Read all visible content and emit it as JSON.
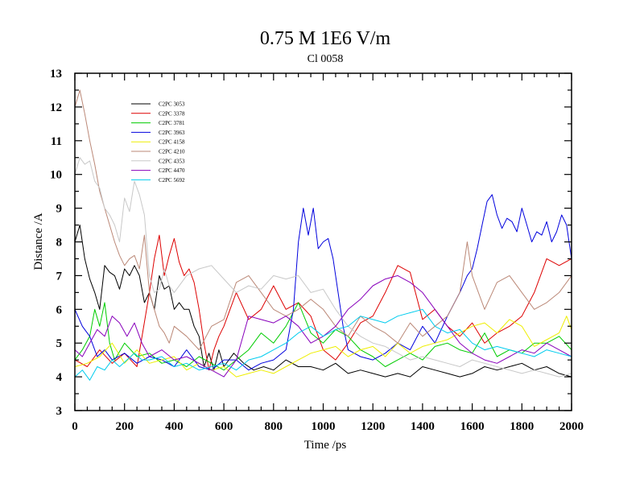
{
  "chart_data": {
    "type": "line",
    "title": "0.75 M 1E6 V/m",
    "subtitle": "Cl 0058",
    "xlabel": "Time /ps",
    "ylabel": "Distance /A",
    "xlim": [
      0,
      2000
    ],
    "ylim": [
      3,
      13
    ],
    "x_major_ticks": [
      0,
      200,
      400,
      600,
      800,
      1000,
      1200,
      1400,
      1600,
      1800,
      2000
    ],
    "x_tick_labels": [
      "0",
      "200",
      "400",
      "600",
      "800",
      "1000",
      "1200",
      "1400",
      "1600",
      "1800",
      "2000"
    ],
    "y_major_ticks": [
      3,
      4,
      5,
      6,
      7,
      8,
      9,
      10,
      11,
      12,
      13
    ],
    "y_tick_labels": [
      "3",
      "4",
      "5",
      "6",
      "7",
      "8",
      "9",
      "10",
      "11",
      "12",
      "13"
    ],
    "legend_position": "top-left",
    "grid": false,
    "series": [
      {
        "name": "C2PC 3053",
        "color": "#000000",
        "x": [
          0,
          20,
          40,
          60,
          80,
          100,
          120,
          140,
          160,
          180,
          200,
          220,
          240,
          260,
          280,
          300,
          320,
          340,
          360,
          380,
          400,
          420,
          440,
          460,
          480,
          500,
          520,
          540,
          560,
          580,
          600,
          640,
          680,
          720,
          760,
          800,
          850,
          900,
          950,
          1000,
          1050,
          1100,
          1150,
          1200,
          1250,
          1300,
          1350,
          1400,
          1450,
          1500,
          1550,
          1600,
          1650,
          1700,
          1750,
          1800,
          1850,
          1900,
          1950,
          2000
        ],
        "values": [
          8.0,
          8.5,
          7.5,
          6.9,
          6.5,
          6.0,
          7.3,
          7.1,
          7.0,
          6.6,
          7.2,
          7.0,
          7.3,
          7.0,
          6.2,
          6.5,
          6.0,
          7.0,
          6.6,
          6.7,
          6.0,
          6.2,
          6.0,
          6.0,
          5.5,
          5.2,
          4.3,
          4.7,
          4.2,
          4.8,
          4.3,
          4.7,
          4.4,
          4.2,
          4.3,
          4.2,
          4.5,
          4.3,
          4.3,
          4.2,
          4.4,
          4.1,
          4.2,
          4.1,
          4.0,
          4.1,
          4.0,
          4.3,
          4.2,
          4.1,
          4.0,
          4.1,
          4.3,
          4.2,
          4.3,
          4.4,
          4.2,
          4.3,
          4.1,
          4.0
        ]
      },
      {
        "name": "C2PC 3378",
        "color": "#dd0000",
        "x": [
          0,
          50,
          100,
          150,
          200,
          250,
          300,
          320,
          340,
          360,
          380,
          400,
          420,
          440,
          460,
          480,
          500,
          520,
          540,
          560,
          580,
          600,
          650,
          700,
          750,
          800,
          850,
          900,
          950,
          1000,
          1050,
          1100,
          1150,
          1200,
          1250,
          1300,
          1350,
          1400,
          1450,
          1500,
          1550,
          1600,
          1650,
          1700,
          1750,
          1800,
          1850,
          1900,
          1950,
          2000
        ],
        "values": [
          4.5,
          4.3,
          4.8,
          4.4,
          4.7,
          4.3,
          6.5,
          7.5,
          8.2,
          7.0,
          7.6,
          8.1,
          7.4,
          7.0,
          7.2,
          6.8,
          6.0,
          5.0,
          4.2,
          4.8,
          5.2,
          5.5,
          6.5,
          5.7,
          6.0,
          6.7,
          6.0,
          6.2,
          5.8,
          4.8,
          4.5,
          5.0,
          5.6,
          5.8,
          6.5,
          7.3,
          7.1,
          5.7,
          6.0,
          5.5,
          5.2,
          5.6,
          5.0,
          5.3,
          5.5,
          5.8,
          6.5,
          7.5,
          7.3,
          7.5
        ]
      },
      {
        "name": "C2PC 3781",
        "color": "#00cc00",
        "x": [
          0,
          30,
          60,
          80,
          100,
          120,
          140,
          160,
          200,
          250,
          300,
          350,
          400,
          450,
          500,
          550,
          600,
          650,
          700,
          750,
          800,
          850,
          900,
          950,
          1000,
          1050,
          1100,
          1150,
          1200,
          1250,
          1300,
          1350,
          1400,
          1450,
          1500,
          1550,
          1600,
          1650,
          1700,
          1750,
          1800,
          1850,
          1900,
          1950,
          2000
        ],
        "values": [
          4.5,
          4.8,
          5.2,
          6.0,
          5.5,
          6.2,
          5.0,
          4.5,
          5.0,
          4.6,
          4.7,
          4.4,
          4.5,
          4.3,
          4.6,
          4.4,
          4.2,
          4.5,
          4.8,
          5.3,
          5.0,
          5.5,
          6.2,
          5.3,
          5.0,
          5.4,
          5.2,
          4.8,
          4.6,
          4.3,
          4.5,
          4.7,
          4.5,
          4.9,
          5.0,
          4.8,
          4.7,
          5.3,
          4.6,
          4.8,
          4.7,
          5.0,
          5.0,
          5.2,
          4.8
        ]
      },
      {
        "name": "C2PC 3963",
        "color": "#0000dd",
        "x": [
          0,
          30,
          60,
          90,
          120,
          150,
          200,
          250,
          300,
          350,
          400,
          450,
          500,
          550,
          600,
          650,
          700,
          750,
          800,
          850,
          880,
          900,
          920,
          940,
          960,
          980,
          1000,
          1020,
          1040,
          1060,
          1080,
          1100,
          1150,
          1200,
          1250,
          1300,
          1350,
          1400,
          1450,
          1500,
          1550,
          1580,
          1600,
          1620,
          1640,
          1660,
          1680,
          1700,
          1720,
          1740,
          1760,
          1780,
          1800,
          1820,
          1840,
          1860,
          1880,
          1900,
          1920,
          1940,
          1960,
          1980,
          2000
        ],
        "values": [
          6.0,
          5.5,
          5.2,
          4.6,
          4.8,
          4.5,
          4.7,
          4.4,
          4.6,
          4.5,
          4.3,
          4.8,
          4.3,
          4.2,
          4.5,
          4.5,
          4.2,
          4.4,
          4.5,
          4.8,
          6.0,
          8.0,
          9.0,
          8.2,
          9.0,
          7.8,
          8.0,
          8.1,
          7.5,
          6.5,
          5.5,
          4.8,
          4.6,
          4.5,
          4.7,
          5.0,
          4.8,
          5.5,
          5.0,
          5.8,
          6.5,
          7.0,
          7.2,
          7.8,
          8.5,
          9.2,
          9.4,
          8.8,
          8.4,
          8.7,
          8.6,
          8.3,
          9.0,
          8.5,
          8.0,
          8.3,
          8.2,
          8.6,
          8.0,
          8.3,
          8.8,
          8.5,
          7.5
        ]
      },
      {
        "name": "C2PC 4158",
        "color": "#eeee00",
        "x": [
          0,
          50,
          100,
          150,
          200,
          250,
          300,
          350,
          400,
          450,
          500,
          550,
          600,
          650,
          700,
          750,
          800,
          850,
          900,
          950,
          1000,
          1050,
          1100,
          1150,
          1200,
          1250,
          1300,
          1350,
          1400,
          1450,
          1500,
          1550,
          1600,
          1650,
          1700,
          1750,
          1800,
          1850,
          1900,
          1950,
          1980,
          2000
        ],
        "values": [
          4.3,
          4.4,
          4.6,
          5.0,
          4.4,
          4.8,
          4.4,
          4.5,
          4.6,
          4.2,
          4.4,
          4.2,
          4.3,
          4.0,
          4.1,
          4.2,
          4.1,
          4.3,
          4.5,
          4.7,
          4.8,
          4.9,
          4.6,
          4.8,
          4.9,
          4.6,
          5.0,
          4.7,
          4.9,
          5.0,
          5.1,
          5.3,
          5.5,
          5.6,
          5.3,
          5.7,
          5.5,
          4.9,
          5.1,
          5.3,
          5.8,
          5.4
        ]
      },
      {
        "name": "C2PC 4210",
        "color": "#bb8877",
        "x": [
          0,
          20,
          40,
          60,
          80,
          100,
          120,
          140,
          160,
          180,
          200,
          220,
          240,
          260,
          280,
          300,
          320,
          340,
          360,
          380,
          400,
          450,
          500,
          550,
          600,
          650,
          700,
          750,
          800,
          850,
          900,
          950,
          1000,
          1050,
          1100,
          1150,
          1200,
          1250,
          1300,
          1350,
          1400,
          1450,
          1500,
          1550,
          1580,
          1600,
          1650,
          1700,
          1750,
          1800,
          1850,
          1900,
          1950,
          2000
        ],
        "values": [
          12.0,
          12.5,
          11.8,
          11.0,
          10.3,
          9.5,
          9.0,
          8.5,
          8.0,
          7.6,
          7.3,
          7.5,
          7.6,
          7.2,
          8.2,
          6.5,
          6.0,
          5.5,
          5.3,
          5.0,
          5.5,
          5.2,
          4.8,
          5.5,
          5.7,
          6.8,
          7.0,
          6.5,
          6.0,
          5.8,
          6.0,
          6.3,
          6.0,
          5.5,
          5.2,
          5.8,
          5.5,
          5.3,
          5.0,
          5.6,
          5.2,
          5.5,
          5.8,
          6.5,
          8.0,
          7.0,
          6.0,
          6.8,
          7.0,
          6.5,
          6.0,
          6.2,
          6.5,
          7.0
        ]
      },
      {
        "name": "C2PC 4353",
        "color": "#c8c8c8",
        "x": [
          0,
          20,
          40,
          60,
          80,
          100,
          120,
          140,
          160,
          180,
          200,
          220,
          240,
          260,
          280,
          300,
          320,
          340,
          360,
          380,
          400,
          450,
          500,
          550,
          600,
          650,
          700,
          750,
          800,
          850,
          900,
          950,
          1000,
          1050,
          1100,
          1150,
          1200,
          1250,
          1300,
          1350,
          1400,
          1450,
          1500,
          1550,
          1600,
          1650,
          1700,
          1750,
          1800,
          1850,
          1900,
          1950,
          2000
        ],
        "values": [
          10.0,
          10.5,
          10.3,
          10.4,
          9.8,
          9.6,
          9.0,
          8.8,
          8.5,
          8.0,
          9.3,
          8.9,
          9.8,
          9.4,
          8.8,
          7.0,
          6.5,
          6.6,
          7.2,
          6.7,
          6.5,
          7.0,
          7.2,
          7.3,
          6.9,
          6.5,
          6.7,
          6.6,
          7.0,
          6.9,
          7.0,
          6.5,
          6.6,
          6.0,
          5.5,
          5.2,
          5.0,
          4.9,
          4.7,
          4.5,
          4.6,
          4.5,
          4.4,
          4.3,
          4.5,
          4.4,
          4.3,
          4.2,
          4.1,
          4.2,
          4.1,
          4.0,
          4.1
        ]
      },
      {
        "name": "C2PC 4470",
        "color": "#8800bb",
        "x": [
          0,
          30,
          60,
          90,
          120,
          150,
          180,
          210,
          240,
          270,
          300,
          350,
          400,
          450,
          500,
          550,
          600,
          650,
          700,
          750,
          800,
          850,
          900,
          950,
          1000,
          1050,
          1100,
          1150,
          1200,
          1250,
          1300,
          1350,
          1400,
          1450,
          1500,
          1550,
          1600,
          1650,
          1700,
          1750,
          1800,
          1850,
          1900,
          1950,
          2000
        ],
        "values": [
          4.8,
          4.6,
          5.0,
          5.4,
          5.2,
          5.8,
          5.6,
          5.2,
          5.6,
          5.0,
          4.6,
          4.8,
          4.5,
          4.6,
          4.4,
          4.2,
          4.0,
          4.5,
          5.8,
          5.7,
          5.6,
          5.8,
          5.5,
          5.0,
          5.2,
          5.5,
          6.0,
          6.3,
          6.7,
          6.9,
          7.0,
          6.8,
          6.5,
          6.0,
          5.5,
          5.0,
          4.7,
          4.5,
          4.4,
          4.6,
          4.8,
          4.7,
          5.0,
          4.8,
          4.6
        ]
      },
      {
        "name": "C2PC 5692",
        "color": "#00ccee",
        "x": [
          0,
          30,
          60,
          90,
          120,
          150,
          180,
          210,
          240,
          270,
          300,
          350,
          400,
          450,
          500,
          550,
          600,
          650,
          700,
          750,
          800,
          850,
          900,
          950,
          1000,
          1050,
          1100,
          1150,
          1200,
          1250,
          1300,
          1350,
          1400,
          1450,
          1500,
          1550,
          1600,
          1650,
          1700,
          1750,
          1800,
          1850,
          1900,
          1950,
          2000
        ],
        "values": [
          4.0,
          4.2,
          3.9,
          4.3,
          4.2,
          4.5,
          4.3,
          4.5,
          4.7,
          4.5,
          4.5,
          4.6,
          4.3,
          4.4,
          4.2,
          4.3,
          4.4,
          4.2,
          4.5,
          4.6,
          4.8,
          5.0,
          5.3,
          5.5,
          5.2,
          5.4,
          5.5,
          5.8,
          5.7,
          5.6,
          5.8,
          5.9,
          6.0,
          5.5,
          5.3,
          5.4,
          5.0,
          4.8,
          4.9,
          4.8,
          4.7,
          4.6,
          4.8,
          4.7,
          4.6
        ]
      }
    ]
  }
}
